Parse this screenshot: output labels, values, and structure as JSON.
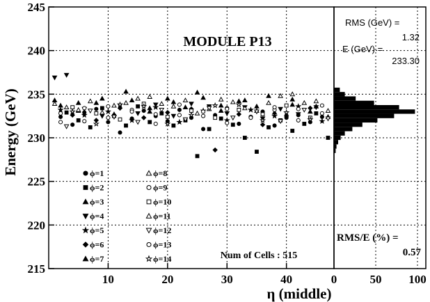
{
  "chart_data": [
    {
      "type": "scatter",
      "title": "MODULE P13",
      "xlabel": "η (middle)",
      "ylabel": "Energy (GeV)",
      "xlim": [
        0,
        48
      ],
      "ylim": [
        215,
        245
      ],
      "x_ticks": [
        "10",
        "20",
        "30",
        "40"
      ],
      "x_tick_values": [
        10,
        20,
        30,
        40
      ],
      "y_ticks": [
        "215",
        "220",
        "225",
        "230",
        "235",
        "240",
        "245"
      ],
      "y_tick_values": [
        215,
        220,
        225,
        230,
        235,
        240,
        245
      ],
      "grid": true,
      "legend_position": "bottom-left",
      "legend": [
        {
          "label": "ϕ=1",
          "marker": "circle-filled"
        },
        {
          "label": "ϕ=2",
          "marker": "square-filled"
        },
        {
          "label": "ϕ=3",
          "marker": "triangle-up-filled"
        },
        {
          "label": "ϕ=4",
          "marker": "triangle-down-filled"
        },
        {
          "label": "ϕ=5",
          "marker": "star-filled"
        },
        {
          "label": "ϕ=6",
          "marker": "diamond-filled"
        },
        {
          "label": "ϕ=7",
          "marker": "triangle-up-filled"
        },
        {
          "label": "ϕ=8",
          "marker": "triangle-up-open"
        },
        {
          "label": "ϕ=9",
          "marker": "circle-open"
        },
        {
          "label": "ϕ=10",
          "marker": "square-open"
        },
        {
          "label": "ϕ=11",
          "marker": "triangle-up-open"
        },
        {
          "label": "ϕ=12",
          "marker": "triangle-down-open"
        },
        {
          "label": "ϕ=13",
          "marker": "circle-open"
        },
        {
          "label": "ϕ=14",
          "marker": "star-open"
        }
      ],
      "annotation": "Num of Cells : 515",
      "series": [
        {
          "marker": "circle-filled",
          "points": [
            [
              2,
              232.4
            ],
            [
              4,
              231.5
            ],
            [
              6,
              232.9
            ],
            [
              8,
              233.3
            ],
            [
              10,
              231.8
            ],
            [
              12,
              230.6
            ],
            [
              14,
              232.2
            ],
            [
              16,
              233.1
            ],
            [
              18,
              232.5
            ],
            [
              20,
              231.9
            ],
            [
              22,
              233.2
            ],
            [
              24,
              232.3
            ],
            [
              26,
              231.0
            ],
            [
              28,
              232.6
            ],
            [
              30,
              233.4
            ],
            [
              32,
              231.6
            ],
            [
              34,
              232.4
            ],
            [
              36,
              233.0
            ],
            [
              38,
              231.4
            ],
            [
              40,
              232.3
            ],
            [
              42,
              232.6
            ],
            [
              44,
              231.8
            ],
            [
              46,
              232.4
            ]
          ]
        },
        {
          "marker": "square-filled",
          "points": [
            [
              3,
              232.9
            ],
            [
              5,
              232.0
            ],
            [
              7,
              231.2
            ],
            [
              9,
              233.4
            ],
            [
              11,
              232.5
            ],
            [
              13,
              231.4
            ],
            [
              15,
              233.6
            ],
            [
              17,
              231.8
            ],
            [
              19,
              232.8
            ],
            [
              21,
              231.4
            ],
            [
              23,
              232.0
            ],
            [
              25,
              227.9
            ],
            [
              27,
              231.0
            ],
            [
              29,
              232.2
            ],
            [
              31,
              231.5
            ],
            [
              33,
              230.0
            ],
            [
              35,
              228.4
            ],
            [
              37,
              231.2
            ],
            [
              39,
              232.0
            ],
            [
              41,
              230.8
            ],
            [
              43,
              231.6
            ],
            [
              45,
              232.8
            ],
            [
              47,
              230.0
            ]
          ]
        },
        {
          "marker": "triangle-up-filled",
          "points": [
            [
              2,
              233.7
            ],
            [
              5,
              233.1
            ],
            [
              8,
              234.0
            ],
            [
              11,
              232.7
            ],
            [
              14,
              234.3
            ],
            [
              17,
              233.0
            ],
            [
              20,
              234.5
            ],
            [
              23,
              233.5
            ],
            [
              26,
              234.6
            ],
            [
              29,
              233.1
            ],
            [
              32,
              234.2
            ],
            [
              35,
              233.6
            ],
            [
              38,
              232.9
            ],
            [
              41,
              233.8
            ],
            [
              44,
              233.0
            ],
            [
              47,
              232.4
            ]
          ]
        },
        {
          "marker": "triangle-down-filled",
          "points": [
            [
              1,
              236.9
            ],
            [
              3,
              237.2
            ],
            [
              6,
              233.3
            ],
            [
              9,
              232.5
            ],
            [
              12,
              233.7
            ],
            [
              15,
              232.8
            ],
            [
              18,
              233.8
            ],
            [
              21,
              232.5
            ],
            [
              24,
              233.9
            ],
            [
              27,
              233.6
            ],
            [
              30,
              232.8
            ],
            [
              33,
              233.5
            ],
            [
              36,
              232.2
            ],
            [
              39,
              233.3
            ],
            [
              42,
              232.7
            ],
            [
              45,
              233.5
            ]
          ]
        },
        {
          "marker": "star-filled",
          "points": [
            [
              2,
              233.2
            ],
            [
              6,
              232.6
            ],
            [
              10,
              233.0
            ],
            [
              14,
              232.0
            ],
            [
              18,
              233.5
            ],
            [
              22,
              231.8
            ],
            [
              26,
              233.1
            ],
            [
              30,
              232.0
            ],
            [
              34,
              233.2
            ],
            [
              38,
              232.5
            ],
            [
              42,
              233.6
            ],
            [
              46,
              231.9
            ]
          ]
        },
        {
          "marker": "diamond-filled",
          "points": [
            [
              4,
              232.6
            ],
            [
              8,
              232.0
            ],
            [
              12,
              233.4
            ],
            [
              16,
              232.3
            ],
            [
              20,
              232.9
            ],
            [
              24,
              233.3
            ],
            [
              28,
              228.6
            ],
            [
              32,
              232.7
            ],
            [
              36,
              231.5
            ],
            [
              40,
              232.5
            ],
            [
              44,
              233.4
            ]
          ]
        },
        {
          "marker": "triangle-up-filled-alt",
          "points": [
            [
              1,
              234.3
            ],
            [
              5,
              234.0
            ],
            [
              9,
              234.5
            ],
            [
              13,
              235.3
            ],
            [
              17,
              233.4
            ],
            [
              21,
              234.1
            ],
            [
              25,
              235.2
            ],
            [
              29,
              233.7
            ],
            [
              33,
              234.3
            ],
            [
              37,
              234.8
            ],
            [
              41,
              234.4
            ],
            [
              45,
              233.6
            ]
          ]
        },
        {
          "marker": "triangle-up-open",
          "points": [
            [
              3,
              233.5
            ],
            [
              7,
              234.2
            ],
            [
              11,
              233.7
            ],
            [
              15,
              234.5
            ],
            [
              19,
              233.9
            ],
            [
              23,
              234.3
            ],
            [
              27,
              233.3
            ],
            [
              31,
              234.1
            ],
            [
              35,
              233.1
            ],
            [
              39,
              234.8
            ],
            [
              43,
              234.0
            ],
            [
              47,
              233.1
            ]
          ]
        },
        {
          "marker": "circle-open",
          "points": [
            [
              2,
              232.8
            ],
            [
              6,
              231.9
            ],
            [
              10,
              232.3
            ],
            [
              14,
              233.2
            ],
            [
              18,
              231.6
            ],
            [
              22,
              232.6
            ],
            [
              26,
              233.0
            ],
            [
              30,
              231.7
            ],
            [
              34,
              232.4
            ],
            [
              38,
              233.2
            ],
            [
              42,
              232.0
            ],
            [
              46,
              232.8
            ]
          ]
        },
        {
          "marker": "square-open",
          "points": [
            [
              4,
              233.5
            ],
            [
              8,
              232.8
            ],
            [
              12,
              232.1
            ],
            [
              16,
              233.9
            ],
            [
              20,
              232.4
            ],
            [
              24,
              233.1
            ],
            [
              28,
              232.3
            ],
            [
              32,
              233.2
            ],
            [
              36,
              232.7
            ],
            [
              40,
              233.7
            ],
            [
              44,
              232.3
            ]
          ]
        },
        {
          "marker": "triangle-up-open-alt",
          "points": [
            [
              1,
              233.9
            ],
            [
              5,
              233.2
            ],
            [
              9,
              232.9
            ],
            [
              13,
              234.0
            ],
            [
              17,
              234.7
            ],
            [
              21,
              233.6
            ],
            [
              25,
              232.8
            ],
            [
              29,
              234.4
            ],
            [
              33,
              233.4
            ],
            [
              37,
              234.0
            ],
            [
              41,
              235.0
            ],
            [
              45,
              234.2
            ]
          ]
        },
        {
          "marker": "triangle-down-open",
          "points": [
            [
              3,
              231.3
            ],
            [
              7,
              233.1
            ],
            [
              11,
              232.4
            ],
            [
              15,
              231.8
            ],
            [
              19,
              233.2
            ],
            [
              23,
              232.1
            ],
            [
              27,
              233.4
            ],
            [
              31,
              232.3
            ],
            [
              35,
              233.0
            ],
            [
              39,
              231.9
            ],
            [
              43,
              233.2
            ],
            [
              47,
              232.2
            ]
          ]
        },
        {
          "marker": "circle-open-alt",
          "points": [
            [
              2,
              231.8
            ],
            [
              6,
              233.4
            ],
            [
              10,
              233.6
            ],
            [
              14,
              233.0
            ],
            [
              18,
              232.7
            ],
            [
              22,
              233.8
            ],
            [
              26,
              232.5
            ],
            [
              30,
              233.3
            ],
            [
              34,
              232.3
            ],
            [
              38,
              233.5
            ],
            [
              42,
              233.3
            ],
            [
              46,
              233.7
            ]
          ]
        },
        {
          "marker": "star-open",
          "points": [
            [
              4,
              233.0
            ],
            [
              8,
              231.6
            ],
            [
              12,
              233.8
            ],
            [
              16,
              233.6
            ],
            [
              20,
              231.6
            ],
            [
              24,
              232.6
            ],
            [
              28,
              233.7
            ],
            [
              32,
              233.8
            ],
            [
              36,
              232.0
            ],
            [
              40,
              232.9
            ],
            [
              44,
              232.1
            ]
          ]
        }
      ]
    },
    {
      "type": "bar",
      "orientation": "horizontal",
      "xlim": [
        0,
        110
      ],
      "x_ticks": [
        "0",
        "50",
        "100"
      ],
      "x_tick_values": [
        0,
        50,
        100
      ],
      "ylim": [
        215,
        245
      ],
      "grid": true,
      "bins": [
        {
          "y": 228.5,
          "value": 2
        },
        {
          "y": 229.0,
          "value": 3
        },
        {
          "y": 229.5,
          "value": 5
        },
        {
          "y": 230.0,
          "value": 8
        },
        {
          "y": 230.5,
          "value": 13
        },
        {
          "y": 231.0,
          "value": 22
        },
        {
          "y": 231.5,
          "value": 34
        },
        {
          "y": 232.0,
          "value": 52
        },
        {
          "y": 232.5,
          "value": 72
        },
        {
          "y": 233.0,
          "value": 97
        },
        {
          "y": 233.5,
          "value": 78
        },
        {
          "y": 234.0,
          "value": 48
        },
        {
          "y": 234.5,
          "value": 26
        },
        {
          "y": 235.0,
          "value": 13
        },
        {
          "y": 235.5,
          "value": 7
        }
      ],
      "stats": [
        {
          "label": "RMS (GeV) =",
          "value": "1.32"
        },
        {
          "label": "E (GeV) =",
          "value": "233.30"
        }
      ],
      "ratio_label": "RMS/E (%) =",
      "ratio_value": "0.57"
    }
  ]
}
